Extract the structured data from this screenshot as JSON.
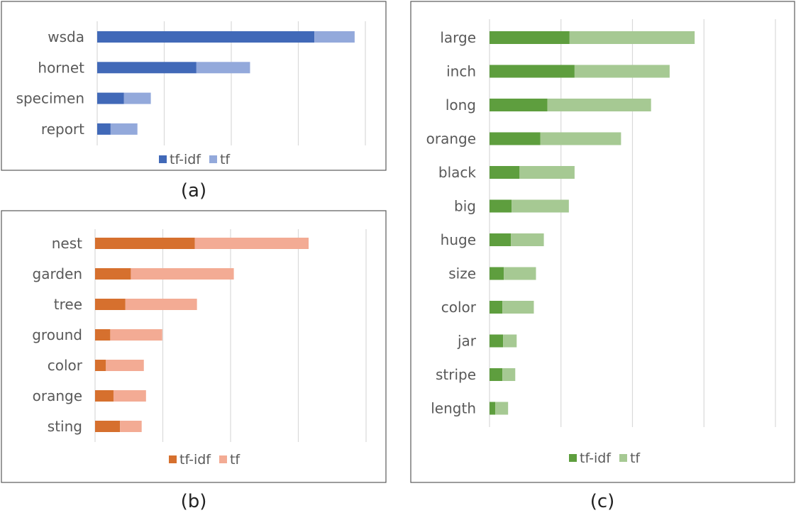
{
  "chart_data": [
    {
      "type": "bar",
      "orientation": "horizontal",
      "stacked": true,
      "caption": "(a)",
      "categories": [
        "wsda",
        "hornet",
        "specimen",
        "report"
      ],
      "series": [
        {
          "name": "tf-idf",
          "color": "#4169b8",
          "values": [
            8.1,
            3.7,
            1.0,
            0.5
          ]
        },
        {
          "name": "tf",
          "color": "#93a9db",
          "values": [
            1.5,
            2.0,
            1.0,
            1.0
          ]
        }
      ],
      "xlim": [
        0,
        10
      ],
      "grid": true,
      "legend": "bottom"
    },
    {
      "type": "bar",
      "orientation": "horizontal",
      "stacked": true,
      "caption": "(b)",
      "categories": [
        "nest",
        "garden",
        "tree",
        "ground",
        "color",
        "orange",
        "sting"
      ],
      "series": [
        {
          "name": "tf-idf",
          "color": "#d6702e",
          "values": [
            9.2,
            3.3,
            2.8,
            1.4,
            1.0,
            1.7,
            2.3
          ]
        },
        {
          "name": "tf",
          "color": "#f3ab94",
          "values": [
            10.5,
            9.5,
            6.6,
            4.8,
            3.5,
            3.0,
            2.0
          ]
        }
      ],
      "xlim": [
        0,
        25
      ],
      "grid": true,
      "legend": "bottom"
    },
    {
      "type": "bar",
      "orientation": "horizontal",
      "stacked": true,
      "caption": "(c)",
      "categories": [
        "large",
        "inch",
        "long",
        "orange",
        "black",
        "big",
        "huge",
        "size",
        "color",
        "jar",
        "stripe",
        "length"
      ],
      "series": [
        {
          "name": "tf-idf",
          "color": "#5e9e3e",
          "values": [
            11.2,
            11.9,
            8.1,
            7.1,
            4.2,
            3.1,
            3.0,
            2.0,
            1.8,
            1.9,
            1.8,
            0.8
          ]
        },
        {
          "name": "tf",
          "color": "#a6c993",
          "values": [
            17.5,
            13.3,
            14.5,
            11.3,
            7.7,
            8.0,
            4.6,
            4.5,
            4.4,
            1.9,
            1.8,
            1.8
          ]
        }
      ],
      "xlim": [
        0,
        40
      ],
      "grid": true,
      "legend": "bottom"
    }
  ]
}
